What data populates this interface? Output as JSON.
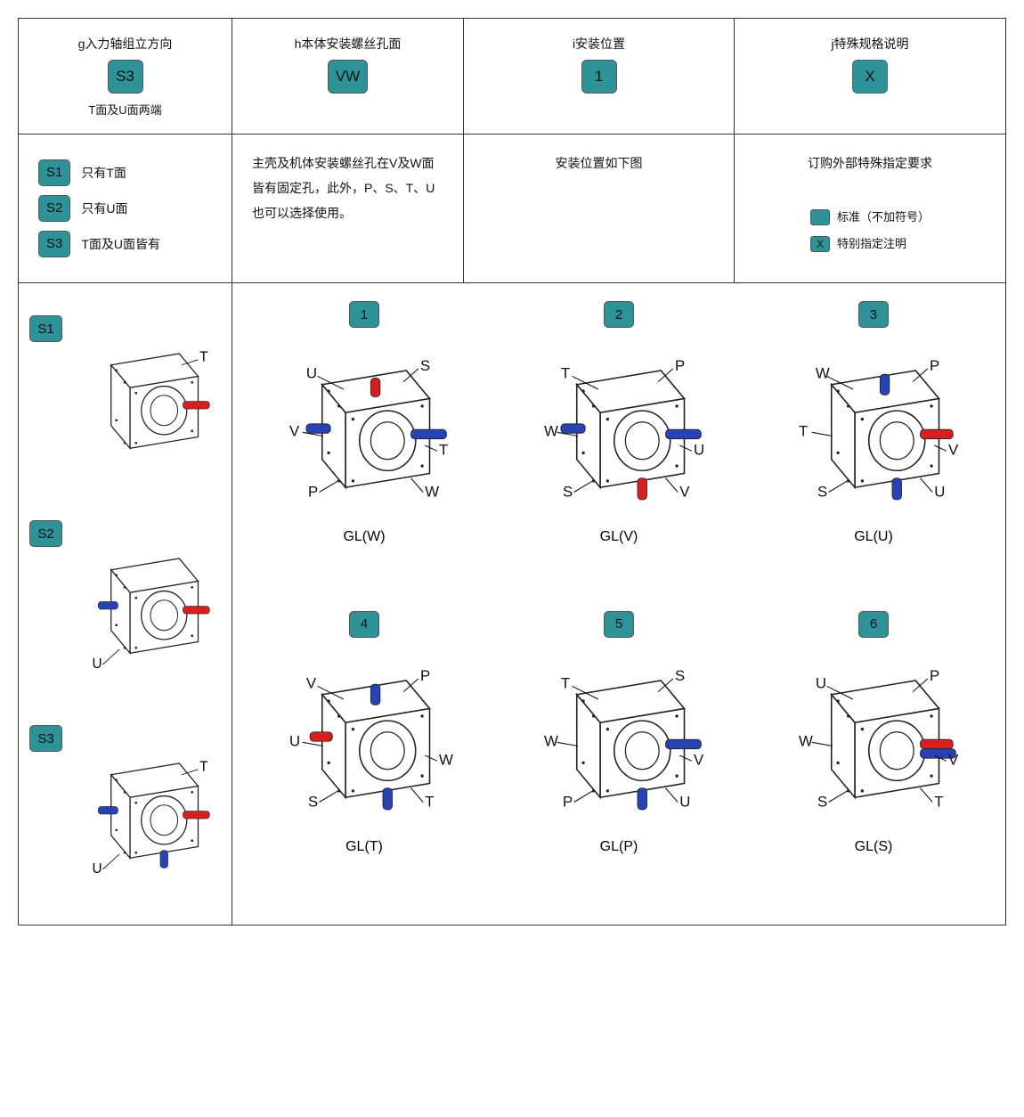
{
  "colors": {
    "badge_bg": "#2d9399",
    "border": "#333333",
    "text": "#111111",
    "shaft_blue": "#2642b5",
    "shaft_red": "#d62020",
    "box_fill": "#ffffff",
    "box_stroke": "#222222"
  },
  "fonts": {
    "base_size": 14,
    "title_size": 14,
    "label_size": 16
  },
  "header": {
    "cols": [
      {
        "title": "g入力轴组立方向",
        "badge": "S3",
        "sub": "T面及U面两端",
        "dashed": false
      },
      {
        "title": "h本体安装螺丝孔面",
        "badge": "VW",
        "sub": "",
        "dashed": false
      },
      {
        "title": "i安装位置",
        "badge": "1",
        "sub": "",
        "dashed": false
      },
      {
        "title": "j特殊规格说明",
        "badge": "X",
        "sub": "",
        "dashed": true
      }
    ]
  },
  "row2": {
    "col0_opts": [
      {
        "code": "S1",
        "text": "只有T面"
      },
      {
        "code": "S2",
        "text": "只有U面"
      },
      {
        "code": "S3",
        "text": "T面及U面皆有"
      }
    ],
    "col1_text": "主壳及机体安装螺丝孔在V及W面皆有固定孔，此外，P、S、T、U也可以选择使用。",
    "col2_text": "安装位置如下图",
    "col3_text": "订购外部特殊指定要求",
    "col3_legend": [
      {
        "mark": "",
        "text": "标准（不加符号）"
      },
      {
        "mark": "X",
        "text": "特别指定注明"
      }
    ]
  },
  "left_diagrams": [
    {
      "code": "S1",
      "labels": [
        "T"
      ]
    },
    {
      "code": "S2",
      "labels": [
        "U"
      ]
    },
    {
      "code": "S3",
      "labels": [
        "T",
        "U"
      ]
    }
  ],
  "grid_diagrams": [
    {
      "num": "1",
      "caption": "GL(W)",
      "faces": {
        "top_left": "U",
        "top_right": "S",
        "left": "V",
        "right": "T",
        "bottom_left": "P",
        "bottom_right": "W"
      },
      "red_top": true,
      "blue_left": true,
      "blue_right": true
    },
    {
      "num": "2",
      "caption": "GL(V)",
      "faces": {
        "top_left": "T",
        "top_right": "P",
        "left": "W",
        "right": "U",
        "bottom_left": "S",
        "bottom_right": "V"
      },
      "red_bottom": true,
      "blue_left": true,
      "blue_right": true
    },
    {
      "num": "3",
      "caption": "GL(U)",
      "faces": {
        "top_left": "W",
        "top_right": "P",
        "left": "T",
        "right": "V",
        "bottom_left": "S",
        "bottom_right": "U"
      },
      "red_right": true,
      "blue_top": true,
      "blue_bottom": true
    },
    {
      "num": "4",
      "caption": "GL(T)",
      "faces": {
        "top_left": "V",
        "top_right": "P",
        "left": "U",
        "right": "W",
        "bottom_left": "S",
        "bottom_right": "T"
      },
      "red_left": true,
      "blue_top": true,
      "blue_bottom": true
    },
    {
      "num": "5",
      "caption": "GL(P)",
      "faces": {
        "top_left": "T",
        "top_right": "S",
        "left": "W",
        "right": "V",
        "bottom_left": "P",
        "bottom_right": "U"
      },
      "blue_right": true,
      "blue_bottom": true
    },
    {
      "num": "6",
      "caption": "GL(S)",
      "faces": {
        "top_left": "U",
        "top_right": "P",
        "left": "W",
        "right": "V",
        "bottom_left": "S",
        "bottom_right": "T"
      },
      "red_right": true,
      "blue_right2": true
    }
  ]
}
